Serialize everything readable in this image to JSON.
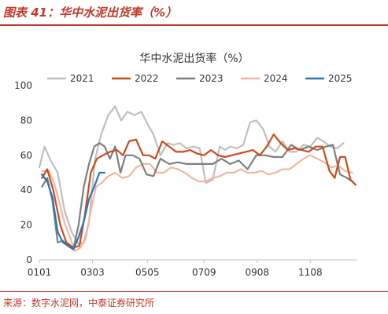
{
  "figure_title": "图表 41：华中水泥出货率（%）",
  "source": "来源：数字水泥网，中泰证券研究所",
  "colors": {
    "accent": "#c0392b",
    "s2021": "#bfbfbf",
    "s2022": "#cc4a1b",
    "s2023": "#7f7f7f",
    "s2024": "#f4b6a0",
    "s2025": "#2e75b6"
  },
  "chart_data": {
    "type": "line",
    "title": "华中水泥出货率（%）",
    "xlabel": "",
    "ylabel": "",
    "ylim": [
      0,
      100
    ],
    "yticks": [
      "0",
      "20",
      "40",
      "60",
      "80",
      "100"
    ],
    "x_range": [
      1,
      365
    ],
    "xticks": [
      {
        "label": "0101",
        "day": 1
      },
      {
        "label": "0303",
        "day": 62
      },
      {
        "label": "0505",
        "day": 125
      },
      {
        "label": "0709",
        "day": 190
      },
      {
        "label": "0908",
        "day": 251
      },
      {
        "label": "1108",
        "day": 312
      }
    ],
    "grid": false,
    "legend": "top",
    "series": [
      {
        "name": "2021",
        "color": "#bfbfbf",
        "x": [
          1,
          7,
          14,
          22,
          30,
          38,
          46,
          52,
          58,
          65,
          72,
          80,
          88,
          95,
          102,
          110,
          118,
          125,
          132,
          140,
          148,
          155,
          162,
          170,
          178,
          185,
          192,
          200,
          208,
          214,
          220,
          228,
          235,
          243,
          250,
          258,
          265,
          272,
          280,
          288,
          296,
          304,
          312,
          320,
          327,
          335,
          343,
          350
        ],
        "y": [
          53,
          65,
          57,
          50,
          28,
          16,
          9,
          10,
          22,
          58,
          72,
          83,
          88,
          80,
          85,
          83,
          85,
          78,
          72,
          60,
          67,
          66,
          67,
          64,
          65,
          64,
          44,
          46,
          65,
          63,
          65,
          64,
          66,
          79,
          80,
          75,
          65,
          62,
          68,
          62,
          62,
          66,
          65,
          70,
          68,
          65,
          64,
          67
        ]
      },
      {
        "name": "2022",
        "color": "#cc4a1b",
        "x": [
          4,
          10,
          17,
          25,
          32,
          40,
          47,
          53,
          60,
          67,
          74,
          82,
          90,
          97,
          104,
          112,
          120,
          127,
          134,
          142,
          150,
          158,
          166,
          174,
          182,
          190,
          198,
          206,
          214,
          222,
          230,
          238,
          246,
          254,
          262,
          270,
          278,
          286,
          294,
          302,
          310,
          318,
          326,
          334,
          340,
          346,
          352,
          358,
          364
        ],
        "y": [
          47,
          52,
          40,
          20,
          10,
          7,
          8,
          25,
          50,
          58,
          60,
          62,
          63,
          60,
          68,
          69,
          60,
          60,
          58,
          68,
          65,
          62,
          62,
          63,
          61,
          60,
          63,
          60,
          59,
          60,
          61,
          62,
          63,
          60,
          65,
          72,
          67,
          63,
          64,
          63,
          62,
          65,
          65,
          51,
          47,
          59,
          59,
          46,
          43
        ]
      },
      {
        "name": "2023",
        "color": "#7f7f7f",
        "x": [
          4,
          10,
          16,
          22,
          28,
          34,
          40,
          46,
          52,
          58,
          64,
          70,
          76,
          82,
          88,
          94,
          100,
          108,
          116,
          124,
          132,
          140,
          150,
          160,
          170,
          180,
          190,
          200,
          210,
          220,
          230,
          240,
          250,
          260,
          270,
          280,
          290,
          300,
          310,
          320,
          330,
          338,
          346,
          354,
          360,
          364
        ],
        "y": [
          42,
          47,
          34,
          10,
          11,
          8,
          6,
          20,
          42,
          55,
          65,
          67,
          65,
          58,
          65,
          50,
          60,
          60,
          58,
          49,
          48,
          58,
          55,
          56,
          55,
          55,
          55,
          55,
          58,
          55,
          57,
          52,
          60,
          60,
          59,
          59,
          66,
          63,
          65,
          63,
          65,
          66,
          49,
          47,
          45,
          43
        ]
      },
      {
        "name": "2024",
        "color": "#f4b6a0",
        "x": [
          4,
          12,
          18,
          24,
          30,
          36,
          42,
          48,
          54,
          60,
          66,
          72,
          80,
          88,
          96,
          104,
          112,
          120,
          128,
          136,
          144,
          152,
          160,
          168,
          176,
          184,
          192,
          200,
          208,
          216,
          224,
          232,
          240,
          248,
          256,
          264,
          272,
          280,
          288,
          296,
          304,
          312,
          320,
          328,
          336,
          344,
          352,
          360
        ],
        "y": [
          51,
          51,
          44,
          33,
          21,
          13,
          5,
          7,
          12,
          28,
          42,
          44,
          48,
          50,
          47,
          48,
          53,
          55,
          55,
          50,
          50,
          53,
          52,
          50,
          47,
          45,
          45,
          47,
          48,
          50,
          50,
          52,
          50,
          50,
          51,
          49,
          50,
          52,
          52,
          55,
          58,
          60,
          58,
          56,
          53,
          54,
          51,
          50
        ]
      },
      {
        "name": "2025",
        "color": "#2e75b6",
        "x": [
          4,
          10,
          16,
          22,
          28,
          34,
          40,
          46,
          52,
          58,
          64,
          70,
          76
        ],
        "y": [
          49,
          45,
          36,
          16,
          10,
          8,
          6,
          13,
          22,
          35,
          42,
          50,
          50
        ]
      }
    ]
  }
}
